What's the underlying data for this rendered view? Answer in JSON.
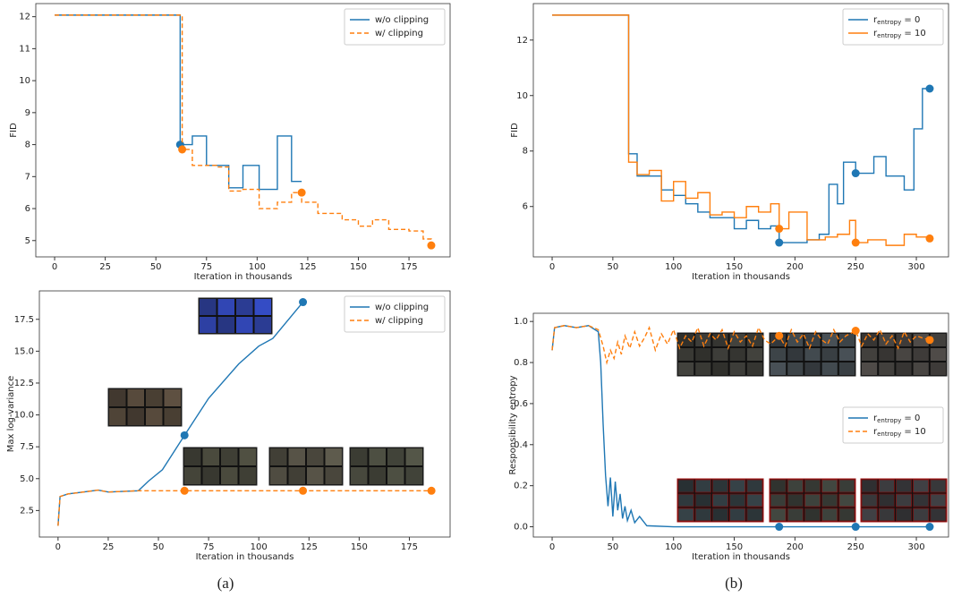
{
  "chart_data": [
    {
      "type": "line",
      "xlabel": "Iteration in thousands",
      "ylabel": "FID",
      "xlim": [
        -9.3,
        195.3
      ],
      "ylim": [
        4.49,
        12.41
      ],
      "xticks": [
        0,
        25,
        50,
        75,
        100,
        125,
        150,
        175
      ],
      "yticks": [
        5,
        6,
        7,
        8,
        9,
        10,
        11,
        12
      ],
      "legend": "upper right",
      "series": [
        {
          "name": "w/o clipping",
          "color": "#1f77b4",
          "linestyle": "solid",
          "drawstyle": "steps-post",
          "x": [
            0,
            62,
            68,
            75,
            86,
            93,
            101,
            110,
            117,
            122
          ],
          "values": [
            12.05,
            8.0,
            8.27,
            7.35,
            6.65,
            7.35,
            6.6,
            8.27,
            6.85,
            6.85
          ],
          "marker_x": [
            62
          ],
          "marker_values": [
            8.0
          ]
        },
        {
          "name": "w/ clipping",
          "color": "#ff7f0e",
          "linestyle": "dashed",
          "drawstyle": "steps-post",
          "x": [
            0,
            63,
            68,
            80,
            86,
            93,
            101,
            110,
            117,
            122,
            130,
            142,
            150,
            157,
            165,
            175,
            182,
            186
          ],
          "values": [
            12.05,
            7.85,
            7.35,
            7.3,
            6.55,
            6.6,
            6.0,
            6.2,
            6.5,
            6.2,
            5.85,
            5.65,
            5.45,
            5.65,
            5.35,
            5.3,
            5.05,
            4.85
          ],
          "marker_x": [
            63,
            122,
            186
          ],
          "marker_values": [
            7.85,
            6.5,
            4.85
          ]
        }
      ]
    },
    {
      "type": "line",
      "xlabel": "Iteration in thousands",
      "ylabel": "FID",
      "xlim": [
        -15.5,
        326.5
      ],
      "ylim": [
        4.185,
        13.315
      ],
      "xticks": [
        0,
        50,
        100,
        150,
        200,
        250,
        300
      ],
      "yticks": [
        6,
        8,
        10,
        12
      ],
      "legend": "upper right",
      "series": [
        {
          "name": "r_entropy = 0",
          "color": "#1f77b4",
          "linestyle": "solid",
          "drawstyle": "steps-post",
          "x": [
            0,
            63,
            70,
            80,
            90,
            100,
            110,
            120,
            130,
            140,
            150,
            160,
            170,
            180,
            187,
            195,
            210,
            220,
            228,
            235,
            240,
            250,
            265,
            275,
            290,
            298,
            305,
            311
          ],
          "values": [
            12.9,
            7.9,
            7.1,
            7.1,
            6.6,
            6.4,
            6.1,
            5.8,
            5.6,
            5.6,
            5.2,
            5.5,
            5.2,
            5.3,
            4.7,
            4.7,
            4.8,
            5.0,
            6.8,
            6.1,
            7.6,
            7.2,
            7.8,
            7.1,
            6.6,
            8.8,
            10.25,
            10.25
          ],
          "marker_x": [
            187,
            250,
            311
          ],
          "marker_values": [
            4.7,
            7.2,
            10.25
          ]
        },
        {
          "name": "r_entropy = 10",
          "color": "#ff7f0e",
          "linestyle": "solid",
          "drawstyle": "steps-post",
          "x": [
            0,
            63,
            70,
            80,
            90,
            100,
            110,
            120,
            130,
            140,
            150,
            160,
            170,
            180,
            187,
            195,
            210,
            225,
            235,
            245,
            250,
            260,
            275,
            290,
            300,
            311
          ],
          "values": [
            12.9,
            7.6,
            7.15,
            7.3,
            6.2,
            6.9,
            6.3,
            6.5,
            5.7,
            5.8,
            5.6,
            6.0,
            5.8,
            6.1,
            5.2,
            5.8,
            4.8,
            4.9,
            5.0,
            5.5,
            4.7,
            4.8,
            4.6,
            5.0,
            4.9,
            4.85
          ],
          "marker_x": [
            187,
            250,
            311
          ],
          "marker_values": [
            5.2,
            4.7,
            4.85
          ]
        }
      ]
    },
    {
      "type": "line",
      "xlabel": "Iteration in thousands",
      "ylabel": "Max log-variance",
      "xlim": [
        -9.3,
        195.3
      ],
      "ylim": [
        0.42,
        19.73
      ],
      "xticks": [
        0,
        25,
        50,
        75,
        100,
        125,
        150,
        175
      ],
      "yticks": [
        2.5,
        {
          "value": 5,
          "label": "5.0"
        },
        7.5,
        {
          "value": 10,
          "label": "10.0"
        },
        12.5,
        {
          "value": 15,
          "label": "15.0"
        },
        17.5
      ],
      "legend": "upper right",
      "series": [
        {
          "name": "w/o clipping",
          "color": "#1f77b4",
          "linestyle": "solid",
          "drawstyle": "linear",
          "x": [
            0,
            1,
            5,
            10,
            20,
            25,
            40,
            45,
            52,
            63,
            75,
            90,
            100,
            107,
            122
          ],
          "values": [
            1.3,
            3.6,
            3.8,
            3.9,
            4.1,
            3.95,
            4.05,
            4.8,
            5.7,
            8.4,
            11.3,
            14.0,
            15.4,
            16.0,
            18.85
          ],
          "marker_x": [
            63,
            122
          ],
          "marker_values": [
            8.4,
            18.85
          ]
        },
        {
          "name": "w/ clipping",
          "color": "#ff7f0e",
          "linestyle": "dashed",
          "drawstyle": "linear",
          "x": [
            0,
            1,
            5,
            10,
            20,
            25,
            40,
            186
          ],
          "values": [
            1.3,
            3.6,
            3.8,
            3.9,
            4.1,
            3.95,
            4.05,
            4.05
          ],
          "marker_x": [
            63,
            122,
            186
          ],
          "marker_values": [
            4.05,
            4.05,
            4.05
          ]
        }
      ]
    },
    {
      "type": "line",
      "xlabel": "Iteration in thousands",
      "ylabel": "Responsibility entropy",
      "xlim": [
        -15.5,
        326.5
      ],
      "ylim": [
        -0.05,
        1.04
      ],
      "xticks": [
        0,
        50,
        100,
        150,
        200,
        250,
        300
      ],
      "yticks": [
        {
          "value": 0,
          "label": "0.0"
        },
        0.2,
        0.4,
        0.6,
        0.8,
        {
          "value": 1,
          "label": "1.0"
        }
      ],
      "legend": "center right",
      "series": [
        {
          "name": "r_entropy = 0",
          "color": "#1f77b4",
          "linestyle": "solid",
          "drawstyle": "linear",
          "x": [
            0,
            2,
            10,
            20,
            30,
            38,
            40,
            42,
            44,
            46,
            48,
            50,
            52,
            54,
            56,
            58,
            60,
            62,
            65,
            68,
            72,
            78,
            100,
            311
          ],
          "values": [
            0.86,
            0.97,
            0.98,
            0.97,
            0.98,
            0.95,
            0.8,
            0.5,
            0.25,
            0.1,
            0.24,
            0.05,
            0.22,
            0.08,
            0.16,
            0.04,
            0.1,
            0.03,
            0.08,
            0.02,
            0.05,
            0.005,
            0,
            0
          ],
          "marker_x": [
            187,
            250,
            311
          ],
          "marker_values": [
            0,
            0,
            0
          ]
        },
        {
          "name": "r_entropy = 10",
          "color": "#ff7f0e",
          "linestyle": "dashed",
          "drawstyle": "linear",
          "x": [
            0,
            2,
            10,
            20,
            30,
            38,
            42,
            45,
            48,
            51,
            54,
            57,
            60,
            64,
            68,
            72,
            76,
            80,
            85,
            90,
            95,
            100,
            105,
            110,
            115,
            120,
            125,
            130,
            135,
            140,
            145,
            150,
            155,
            160,
            165,
            170,
            175,
            180,
            187,
            192,
            197,
            202,
            207,
            212,
            217,
            222,
            227,
            232,
            237,
            242,
            250,
            255,
            260,
            265,
            270,
            275,
            280,
            285,
            290,
            295,
            300,
            305,
            311
          ],
          "values": [
            0.86,
            0.97,
            0.98,
            0.97,
            0.98,
            0.96,
            0.88,
            0.8,
            0.86,
            0.82,
            0.9,
            0.84,
            0.93,
            0.87,
            0.95,
            0.88,
            0.92,
            0.97,
            0.86,
            0.94,
            0.89,
            0.96,
            0.87,
            0.93,
            0.9,
            0.97,
            0.88,
            0.94,
            0.91,
            0.96,
            0.87,
            0.95,
            0.9,
            0.93,
            0.88,
            0.97,
            0.91,
            0.89,
            0.93,
            0.88,
            0.96,
            0.9,
            0.94,
            0.87,
            0.95,
            0.91,
            0.89,
            0.96,
            0.9,
            0.93,
            0.955,
            0.88,
            0.94,
            0.91,
            0.96,
            0.89,
            0.93,
            0.87,
            0.95,
            0.9,
            0.93,
            0.92,
            0.91
          ],
          "marker_x": [
            187,
            250,
            311
          ],
          "marker_values": [
            0.93,
            0.955,
            0.91
          ]
        }
      ]
    }
  ],
  "captions": [
    "(a)",
    "(b)"
  ]
}
